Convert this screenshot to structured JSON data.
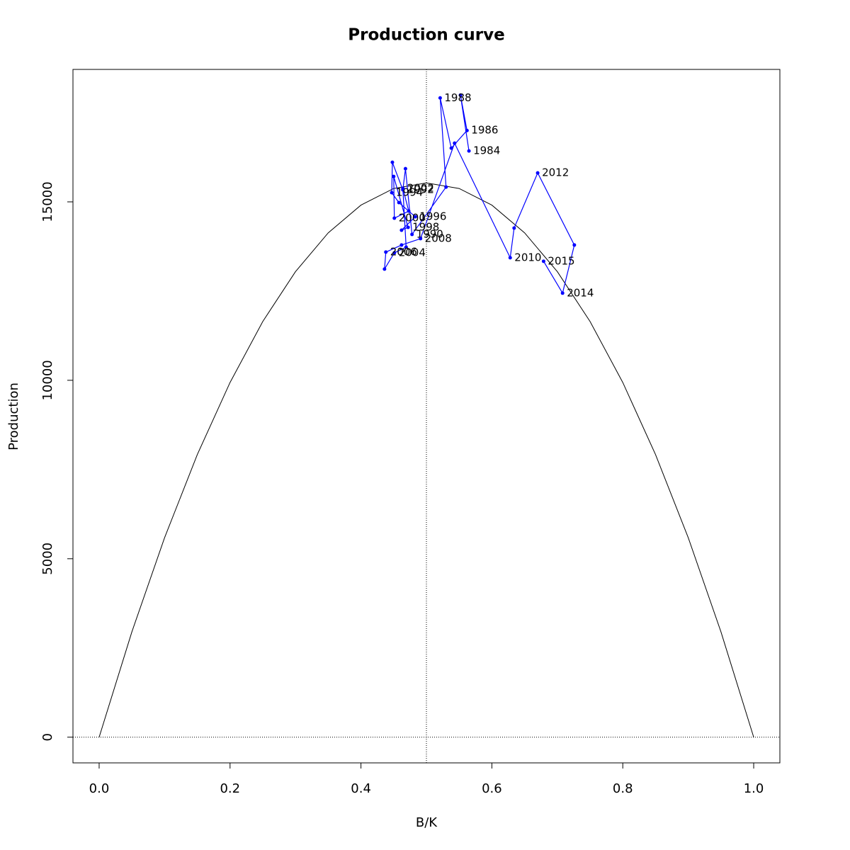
{
  "chart_data": {
    "type": "line",
    "title": "Production curve",
    "x_label": "B/K",
    "y_label": "Production",
    "xlim": [
      -0.04,
      1.04
    ],
    "ylim": [
      -720,
      18711
    ],
    "xticks": [
      {
        "value": 0,
        "label": "0.0"
      },
      0.2,
      0.4,
      0.6,
      0.8,
      {
        "value": 1,
        "label": "1.0"
      }
    ],
    "yticks": [
      0,
      5000,
      10000,
      15000
    ],
    "reference_lines": {
      "x": 0.5,
      "y": 0
    },
    "curve": {
      "color": "#000000",
      "x": [
        0,
        0.05,
        0.1,
        0.15,
        0.2,
        0.25,
        0.3,
        0.35,
        0.4,
        0.45,
        0.5,
        0.55,
        0.6,
        0.65,
        0.7,
        0.75,
        0.8,
        0.85,
        0.9,
        0.95,
        1
      ],
      "values": [
        0,
        2951,
        5591,
        7920,
        9939,
        11648,
        13045,
        14132,
        14909,
        15375,
        15530,
        15375,
        14909,
        14132,
        13045,
        11648,
        9939,
        7920,
        5591,
        2951,
        0
      ]
    },
    "trajectory": {
      "color": "#0000ff",
      "x": [
        0.565,
        0.552,
        0.562,
        0.538,
        0.521,
        0.53,
        0.478,
        0.468,
        0.464,
        0.448,
        0.447,
        0.458,
        0.483,
        0.462,
        0.472,
        0.45,
        0.451,
        0.473,
        0.464,
        0.469,
        0.451,
        0.436,
        0.438,
        0.462,
        0.491,
        0.543,
        0.628,
        0.634,
        0.67,
        0.726,
        0.708,
        0.679
      ],
      "values": [
        16426,
        17991,
        17000,
        16505,
        17912,
        15415,
        14088,
        15930,
        15336,
        16109,
        15257,
        14979,
        14583,
        14206,
        14286,
        15712,
        14543,
        14741,
        15375,
        13731,
        13572,
        13117,
        13592,
        13790,
        13969,
        16644,
        13434,
        14266,
        15811,
        13790,
        12443,
        13335
      ],
      "labels": [
        "1984",
        null,
        "1986",
        null,
        "1988",
        null,
        "1990",
        null,
        "1992",
        null,
        "1994",
        null,
        "1996",
        null,
        "1998",
        null,
        "2000",
        null,
        "2002",
        null,
        "2004",
        null,
        "2006",
        null,
        "2008",
        null,
        "2010",
        null,
        "2012",
        null,
        "2014",
        "2015"
      ]
    }
  }
}
